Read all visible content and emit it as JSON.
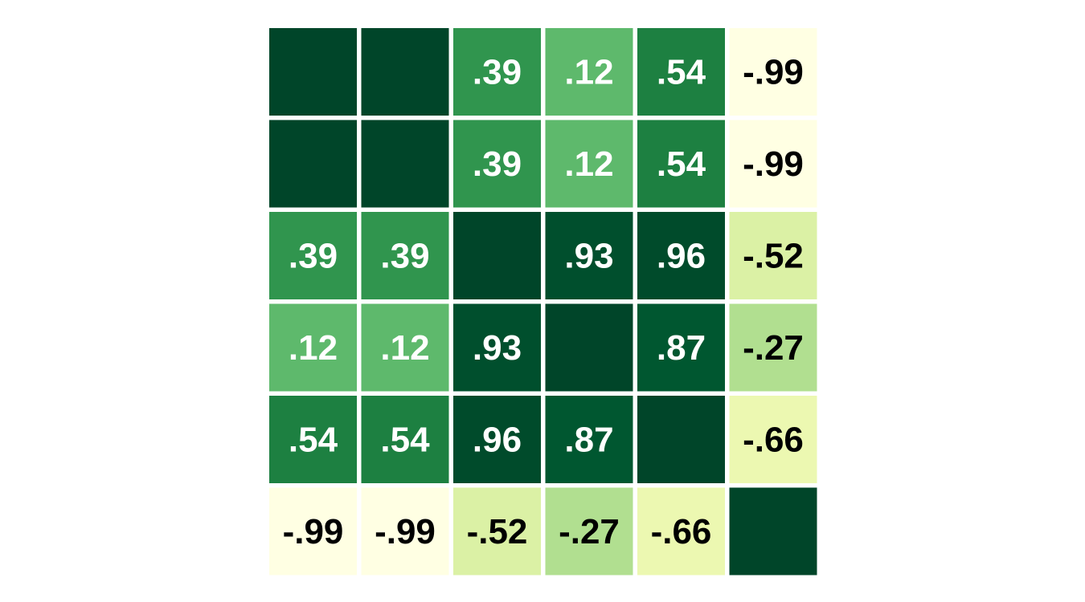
{
  "chart_data": {
    "type": "heatmap",
    "title": "",
    "xlabel": "",
    "ylabel": "",
    "rows": 6,
    "cols": 6,
    "values": [
      [
        1,
        1,
        0.39,
        0.12,
        0.54,
        -0.99
      ],
      [
        1,
        1,
        0.39,
        0.12,
        0.54,
        -0.99
      ],
      [
        0.39,
        0.39,
        1,
        0.93,
        0.96,
        -0.52
      ],
      [
        0.12,
        0.12,
        0.93,
        1,
        0.87,
        -0.27
      ],
      [
        0.54,
        0.54,
        0.96,
        0.87,
        1,
        -0.66
      ],
      [
        -0.99,
        -0.99,
        -0.52,
        -0.27,
        -0.66,
        1
      ]
    ],
    "labels": [
      [
        "",
        "",
        ".39",
        ".12",
        ".54",
        "-.99"
      ],
      [
        "",
        "",
        ".39",
        ".12",
        ".54",
        "-.99"
      ],
      [
        ".39",
        ".39",
        "",
        ".93",
        ".96",
        "-.52"
      ],
      [
        ".12",
        ".12",
        ".93",
        "",
        ".87",
        "-.27"
      ],
      [
        ".54",
        ".54",
        ".96",
        ".87",
        "",
        "-.66"
      ],
      [
        "-.99",
        "-.99",
        "-.52",
        "-.27",
        "-.66",
        ""
      ]
    ],
    "color_scale": "YlGn",
    "value_range": [
      -1,
      1
    ],
    "colors": {
      "text_light": "#ffffff",
      "text_dark": "#000000",
      "background": "#ffffff"
    }
  }
}
